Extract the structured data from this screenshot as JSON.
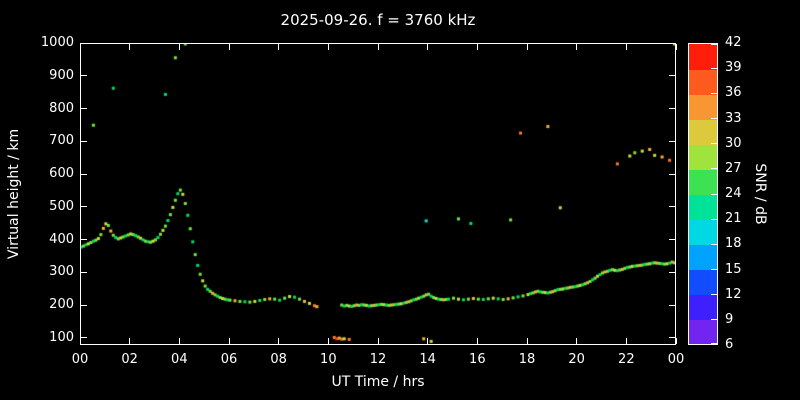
{
  "chart_data": {
    "type": "scatter",
    "title": "2025-09-26. f = 3760 kHz",
    "xlabel": "UT Time / hrs",
    "ylabel": "Virtual height / km",
    "colorbar_label": "SNR / dB",
    "background": "#000000",
    "axis_color": "#ffffff",
    "xlim": [
      0,
      24
    ],
    "ylim": [
      78,
      1000
    ],
    "grid": false,
    "xticks": [
      {
        "v": 0,
        "label": "00"
      },
      {
        "v": 2,
        "label": "02"
      },
      {
        "v": 4,
        "label": "04"
      },
      {
        "v": 6,
        "label": "06"
      },
      {
        "v": 8,
        "label": "08"
      },
      {
        "v": 10,
        "label": "10"
      },
      {
        "v": 12,
        "label": "12"
      },
      {
        "v": 14,
        "label": "14"
      },
      {
        "v": 16,
        "label": "16"
      },
      {
        "v": 18,
        "label": "18"
      },
      {
        "v": 20,
        "label": "20"
      },
      {
        "v": 22,
        "label": "22"
      },
      {
        "v": 24,
        "label": "00"
      }
    ],
    "yticks": [
      {
        "v": 100,
        "label": "100"
      },
      {
        "v": 200,
        "label": "200"
      },
      {
        "v": 300,
        "label": "300"
      },
      {
        "v": 400,
        "label": "400"
      },
      {
        "v": 500,
        "label": "500"
      },
      {
        "v": 600,
        "label": "600"
      },
      {
        "v": 700,
        "label": "700"
      },
      {
        "v": 800,
        "label": "800"
      },
      {
        "v": 900,
        "label": "900"
      },
      {
        "v": 1000,
        "label": "1000"
      }
    ],
    "colorbar": {
      "min": 6,
      "max": 42,
      "ticks": [
        6,
        9,
        12,
        15,
        18,
        21,
        24,
        27,
        30,
        33,
        36,
        39,
        42
      ],
      "stops": [
        {
          "v": 6,
          "c": "#8a2be2"
        },
        {
          "v": 9,
          "c": "#5a1eff"
        },
        {
          "v": 12,
          "c": "#2222ff"
        },
        {
          "v": 15,
          "c": "#0077ff"
        },
        {
          "v": 18,
          "c": "#00ccff"
        },
        {
          "v": 21,
          "c": "#00e6c8"
        },
        {
          "v": 24,
          "c": "#00dd66"
        },
        {
          "v": 27,
          "c": "#77e63c"
        },
        {
          "v": 30,
          "c": "#c8e03c"
        },
        {
          "v": 33,
          "c": "#f0b43c"
        },
        {
          "v": 36,
          "c": "#ff7a28"
        },
        {
          "v": 39,
          "c": "#ff3c14"
        },
        {
          "v": 42,
          "c": "#ff0000"
        }
      ]
    },
    "points": [
      [
        0.0,
        380,
        24
      ],
      [
        0.1,
        383,
        27
      ],
      [
        0.2,
        387,
        24
      ],
      [
        0.3,
        390,
        30
      ],
      [
        0.4,
        394,
        27
      ],
      [
        0.5,
        398,
        24
      ],
      [
        0.6,
        401,
        27
      ],
      [
        0.7,
        406,
        30
      ],
      [
        0.8,
        418,
        27
      ],
      [
        0.9,
        437,
        33
      ],
      [
        1.0,
        451,
        30
      ],
      [
        1.1,
        446,
        27
      ],
      [
        1.2,
        429,
        33
      ],
      [
        1.3,
        416,
        27
      ],
      [
        1.4,
        409,
        24
      ],
      [
        1.5,
        405,
        27
      ],
      [
        1.6,
        408,
        30
      ],
      [
        1.7,
        411,
        27
      ],
      [
        1.8,
        414,
        24
      ],
      [
        1.9,
        417,
        27
      ],
      [
        2.0,
        420,
        30
      ],
      [
        2.1,
        418,
        27
      ],
      [
        2.2,
        415,
        24
      ],
      [
        2.3,
        411,
        27
      ],
      [
        2.4,
        407,
        30
      ],
      [
        2.5,
        402,
        24
      ],
      [
        2.6,
        398,
        27
      ],
      [
        2.7,
        396,
        24
      ],
      [
        2.8,
        395,
        27
      ],
      [
        2.9,
        398,
        30
      ],
      [
        3.0,
        402,
        27
      ],
      [
        3.1,
        409,
        24
      ],
      [
        3.2,
        419,
        27
      ],
      [
        3.3,
        431,
        30
      ],
      [
        3.4,
        444,
        27
      ],
      [
        3.5,
        461,
        24
      ],
      [
        3.6,
        479,
        27
      ],
      [
        3.7,
        501,
        30
      ],
      [
        3.8,
        523,
        27
      ],
      [
        3.9,
        543,
        24
      ],
      [
        4.0,
        554,
        27
      ],
      [
        4.1,
        541,
        30
      ],
      [
        4.2,
        513,
        27
      ],
      [
        4.3,
        477,
        24
      ],
      [
        4.4,
        436,
        27
      ],
      [
        4.5,
        396,
        24
      ],
      [
        4.6,
        357,
        27
      ],
      [
        4.7,
        324,
        24
      ],
      [
        4.8,
        297,
        27
      ],
      [
        4.9,
        277,
        30
      ],
      [
        5.0,
        261,
        27
      ],
      [
        5.1,
        251,
        24
      ],
      [
        5.2,
        245,
        27
      ],
      [
        5.3,
        239,
        33
      ],
      [
        5.4,
        234,
        27
      ],
      [
        5.5,
        230,
        24
      ],
      [
        5.6,
        226,
        27
      ],
      [
        5.7,
        223,
        30
      ],
      [
        5.8,
        221,
        27
      ],
      [
        5.9,
        219,
        24
      ],
      [
        6.0,
        218,
        27
      ],
      [
        6.2,
        216,
        33
      ],
      [
        6.4,
        214,
        27
      ],
      [
        6.6,
        213,
        24
      ],
      [
        6.8,
        212,
        27
      ],
      [
        7.0,
        214,
        30
      ],
      [
        7.2,
        217,
        24
      ],
      [
        7.4,
        220,
        27
      ],
      [
        7.6,
        222,
        33
      ],
      [
        7.8,
        221,
        27
      ],
      [
        8.0,
        218,
        24
      ],
      [
        8.2,
        224,
        27
      ],
      [
        8.4,
        229,
        30
      ],
      [
        8.6,
        227,
        24
      ],
      [
        8.8,
        221,
        27
      ],
      [
        9.0,
        214,
        33
      ],
      [
        9.2,
        208,
        30
      ],
      [
        9.4,
        201,
        36
      ],
      [
        9.5,
        198,
        33
      ],
      [
        10.2,
        104,
        36
      ],
      [
        10.3,
        100,
        39
      ],
      [
        10.4,
        102,
        33
      ],
      [
        10.5,
        99,
        36
      ],
      [
        10.6,
        100,
        30
      ],
      [
        10.8,
        98,
        36
      ],
      [
        13.8,
        100,
        33
      ],
      [
        14.1,
        92,
        30
      ],
      [
        10.5,
        203,
        27
      ],
      [
        10.6,
        200,
        24
      ],
      [
        10.7,
        202,
        27
      ],
      [
        10.8,
        200,
        30
      ],
      [
        10.9,
        199,
        24
      ],
      [
        11.0,
        201,
        27
      ],
      [
        11.1,
        203,
        33
      ],
      [
        11.2,
        202,
        27
      ],
      [
        11.3,
        204,
        24
      ],
      [
        11.4,
        203,
        27
      ],
      [
        11.5,
        202,
        30
      ],
      [
        11.6,
        200,
        24
      ],
      [
        11.7,
        201,
        27
      ],
      [
        11.8,
        202,
        33
      ],
      [
        11.9,
        203,
        27
      ],
      [
        12.0,
        204,
        24
      ],
      [
        12.1,
        205,
        27
      ],
      [
        12.2,
        204,
        30
      ],
      [
        12.3,
        203,
        24
      ],
      [
        12.4,
        202,
        27
      ],
      [
        12.5,
        203,
        33
      ],
      [
        12.6,
        204,
        27
      ],
      [
        12.7,
        205,
        24
      ],
      [
        12.8,
        206,
        27
      ],
      [
        12.9,
        207,
        30
      ],
      [
        13.0,
        209,
        24
      ],
      [
        13.1,
        211,
        27
      ],
      [
        13.2,
        213,
        33
      ],
      [
        13.3,
        216,
        27
      ],
      [
        13.4,
        219,
        24
      ],
      [
        13.5,
        221,
        27
      ],
      [
        13.6,
        224,
        30
      ],
      [
        13.7,
        227,
        24
      ],
      [
        13.8,
        230,
        27
      ],
      [
        13.9,
        234,
        33
      ],
      [
        14.0,
        236,
        27
      ],
      [
        14.1,
        230,
        24
      ],
      [
        14.2,
        226,
        27
      ],
      [
        14.3,
        223,
        30
      ],
      [
        14.4,
        221,
        24
      ],
      [
        14.5,
        220,
        27
      ],
      [
        14.6,
        219,
        33
      ],
      [
        14.7,
        220,
        27
      ],
      [
        14.8,
        221,
        24
      ],
      [
        15.0,
        224,
        27
      ],
      [
        15.2,
        221,
        30
      ],
      [
        15.4,
        219,
        24
      ],
      [
        15.6,
        221,
        27
      ],
      [
        15.8,
        223,
        33
      ],
      [
        16.0,
        221,
        27
      ],
      [
        16.2,
        220,
        24
      ],
      [
        16.4,
        222,
        27
      ],
      [
        16.6,
        224,
        30
      ],
      [
        16.8,
        222,
        24
      ],
      [
        17.0,
        220,
        27
      ],
      [
        17.2,
        222,
        33
      ],
      [
        17.4,
        225,
        27
      ],
      [
        17.6,
        228,
        24
      ],
      [
        17.8,
        231,
        27
      ],
      [
        18.0,
        235,
        30
      ],
      [
        18.1,
        238,
        24
      ],
      [
        18.2,
        240,
        27
      ],
      [
        18.3,
        243,
        33
      ],
      [
        18.4,
        245,
        27
      ],
      [
        18.5,
        243,
        24
      ],
      [
        18.6,
        242,
        27
      ],
      [
        18.7,
        241,
        30
      ],
      [
        18.8,
        240,
        24
      ],
      [
        18.9,
        242,
        27
      ],
      [
        19.0,
        244,
        33
      ],
      [
        19.1,
        247,
        27
      ],
      [
        19.2,
        250,
        24
      ],
      [
        19.3,
        251,
        27
      ],
      [
        19.4,
        252,
        30
      ],
      [
        19.5,
        254,
        24
      ],
      [
        19.6,
        255,
        27
      ],
      [
        19.7,
        257,
        33
      ],
      [
        19.8,
        258,
        27
      ],
      [
        19.9,
        259,
        24
      ],
      [
        20.0,
        261,
        27
      ],
      [
        20.1,
        263,
        30
      ],
      [
        20.2,
        265,
        24
      ],
      [
        20.3,
        268,
        27
      ],
      [
        20.4,
        271,
        33
      ],
      [
        20.5,
        275,
        27
      ],
      [
        20.6,
        280,
        24
      ],
      [
        20.7,
        285,
        27
      ],
      [
        20.8,
        291,
        30
      ],
      [
        20.9,
        296,
        24
      ],
      [
        21.0,
        301,
        27
      ],
      [
        21.1,
        304,
        33
      ],
      [
        21.2,
        306,
        27
      ],
      [
        21.3,
        309,
        24
      ],
      [
        21.4,
        311,
        27
      ],
      [
        21.5,
        309,
        30
      ],
      [
        21.6,
        308,
        24
      ],
      [
        21.7,
        310,
        27
      ],
      [
        21.8,
        312,
        33
      ],
      [
        21.9,
        315,
        27
      ],
      [
        22.0,
        318,
        24
      ],
      [
        22.1,
        319,
        27
      ],
      [
        22.2,
        321,
        30
      ],
      [
        22.3,
        322,
        24
      ],
      [
        22.4,
        323,
        27
      ],
      [
        22.5,
        324,
        33
      ],
      [
        22.6,
        325,
        27
      ],
      [
        22.7,
        327,
        24
      ],
      [
        22.8,
        328,
        27
      ],
      [
        22.9,
        329,
        30
      ],
      [
        23.0,
        331,
        24
      ],
      [
        23.1,
        332,
        27
      ],
      [
        23.2,
        331,
        33
      ],
      [
        23.3,
        330,
        27
      ],
      [
        23.4,
        329,
        24
      ],
      [
        23.5,
        328,
        27
      ],
      [
        23.6,
        329,
        30
      ],
      [
        23.7,
        331,
        24
      ],
      [
        23.8,
        334,
        27
      ],
      [
        23.9,
        332,
        33
      ],
      [
        24.0,
        330,
        30
      ],
      [
        0.5,
        752,
        27
      ],
      [
        1.3,
        865,
        24
      ],
      [
        3.4,
        846,
        24
      ],
      [
        3.8,
        958,
        27
      ],
      [
        4.2,
        1000,
        27
      ],
      [
        23.9,
        1000,
        30
      ],
      [
        13.9,
        460,
        21
      ],
      [
        15.2,
        466,
        27
      ],
      [
        15.7,
        452,
        24
      ],
      [
        17.3,
        463,
        27
      ],
      [
        19.3,
        500,
        30
      ],
      [
        17.7,
        728,
        36
      ],
      [
        18.8,
        748,
        33
      ],
      [
        21.6,
        634,
        36
      ],
      [
        22.1,
        658,
        30
      ],
      [
        22.3,
        668,
        27
      ],
      [
        22.6,
        673,
        30
      ],
      [
        22.9,
        678,
        33
      ],
      [
        23.1,
        660,
        30
      ],
      [
        23.4,
        655,
        33
      ],
      [
        23.7,
        645,
        36
      ]
    ]
  }
}
